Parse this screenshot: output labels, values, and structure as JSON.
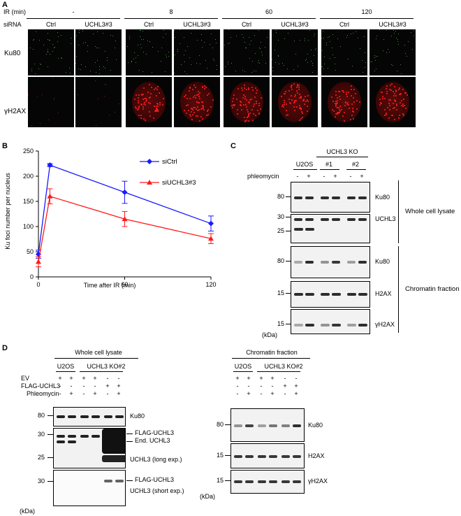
{
  "panelA": {
    "label": "A",
    "ir_label": "IR (min)",
    "sirna_label": "siRNA",
    "groups": [
      "-",
      "8",
      "60",
      "120"
    ],
    "sirna": [
      "Ctrl",
      "UCHL3#3",
      "Ctrl",
      "UCHL3#3",
      "Ctrl",
      "UCHL3#3",
      "Ctrl",
      "UCHL3#3"
    ],
    "rows": [
      "Ku80",
      "γH2AX"
    ]
  },
  "panelB": {
    "label": "B",
    "chart_data": {
      "type": "line",
      "xlabel": "Time after IR (min)",
      "ylabel": "Ku foci number per nucleus",
      "xlim": [
        0,
        120
      ],
      "ylim": [
        0,
        250
      ],
      "xticks": [
        "0",
        "60",
        "120"
      ],
      "yticks": [
        "0",
        "50",
        "100",
        "150",
        "200",
        "250"
      ],
      "legend_position": "top-right",
      "series": [
        {
          "name": "siCtrl",
          "color": "#1a1aff",
          "marker": "diamond",
          "x": [
            0,
            8,
            60,
            120
          ],
          "y": [
            45,
            222,
            168,
            106
          ],
          "err": [
            8,
            3,
            22,
            15
          ]
        },
        {
          "name": "siUCHL3#3",
          "color": "#ff1a1a",
          "marker": "triangle",
          "x": [
            0,
            8,
            60,
            120
          ],
          "y": [
            30,
            160,
            115,
            76
          ],
          "err": [
            10,
            15,
            15,
            10
          ]
        }
      ]
    }
  },
  "panelC": {
    "label": "C",
    "ko_label": "UCHL3 KO",
    "cells": [
      "U2OS",
      "#1",
      "#2"
    ],
    "treat_label": "phleomycin",
    "signs": [
      "-",
      "+",
      "-",
      "+",
      "-",
      "+"
    ],
    "rows": [
      {
        "mw": "80",
        "name": "Ku80"
      },
      {
        "mw": "30",
        "mw2": "25",
        "name": "UCHL3"
      },
      {
        "mw": "80",
        "name": "Ku80"
      },
      {
        "mw": "15",
        "name": "H2AX"
      },
      {
        "mw": "15",
        "name": "γH2AX"
      }
    ],
    "fraction_wcl": "Whole cell lysate",
    "fraction_chrom": "Chromatin fraction",
    "kda": "(kDa)"
  },
  "panelD": {
    "label": "D",
    "wcl_title": "Whole cell lysate",
    "chrom_title": "Chromatin fraction",
    "cells": [
      "U2OS",
      "UCHL3 KO#2"
    ],
    "row_labels": [
      "EV",
      "FLAG-UCHL3",
      "Phleomycin"
    ],
    "ev": [
      "+",
      "+",
      "+",
      "+",
      "-",
      "-"
    ],
    "flag": [
      "-",
      "-",
      "-",
      "-",
      "+",
      "+"
    ],
    "phleo": [
      "-",
      "+",
      "-",
      "+",
      "-",
      "+"
    ],
    "left_blots": [
      {
        "mw": [
          "80"
        ],
        "names": [
          "Ku80"
        ]
      },
      {
        "mw": [
          "30",
          "25"
        ],
        "names": [
          "FLAG-UCHL3",
          "End. UCHL3",
          "UCHL3 (long exp.)"
        ]
      },
      {
        "mw": [
          "30"
        ],
        "names": [
          "FLAG-UCHL3",
          "UCHL3 (short exp.)"
        ]
      }
    ],
    "right_blots": [
      {
        "mw": "80",
        "name": "Ku80"
      },
      {
        "mw": "15",
        "name": "H2AX"
      },
      {
        "mw": "15",
        "name": "γH2AX"
      }
    ],
    "kda": "(kDa)"
  }
}
